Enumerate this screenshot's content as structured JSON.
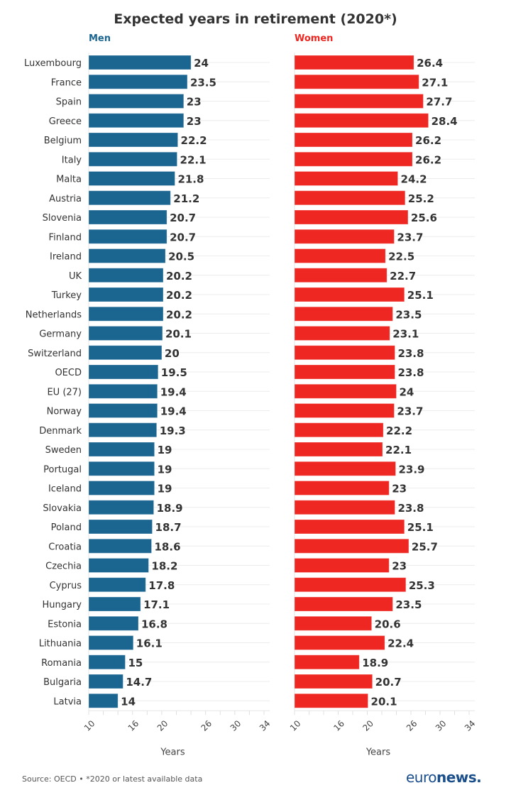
{
  "chart_data": {
    "type": "bar",
    "orientation": "horizontal",
    "title": "Expected years in retirement (2020*)",
    "categories": [
      "Luxembourg",
      "France",
      "Spain",
      "Greece",
      "Belgium",
      "Italy",
      "Malta",
      "Austria",
      "Slovenia",
      "Finland",
      "Ireland",
      "UK",
      "Turkey",
      "Netherlands",
      "Germany",
      "Switzerland",
      "OECD",
      "EU (27)",
      "Norway",
      "Denmark",
      "Sweden",
      "Portugal",
      "Iceland",
      "Slovakia",
      "Poland",
      "Croatia",
      "Czechia",
      "Cyprus",
      "Hungary",
      "Estonia",
      "Lithuania",
      "Romania",
      "Bulgaria",
      "Latvia"
    ],
    "series": [
      {
        "name": "Men",
        "color": "#1b6591",
        "values": [
          24,
          23.5,
          23,
          23,
          22.2,
          22.1,
          21.8,
          21.2,
          20.7,
          20.7,
          20.5,
          20.2,
          20.2,
          20.2,
          20.1,
          20,
          19.5,
          19.4,
          19.4,
          19.3,
          19,
          19,
          19,
          18.9,
          18.7,
          18.6,
          18.2,
          17.8,
          17.1,
          16.8,
          16.1,
          15,
          14.7,
          14
        ]
      },
      {
        "name": "Women",
        "color": "#ee2722",
        "values": [
          26.4,
          27.1,
          27.7,
          28.4,
          26.2,
          26.2,
          24.2,
          25.2,
          25.6,
          23.7,
          22.5,
          22.7,
          25.1,
          23.5,
          23.1,
          23.8,
          23.8,
          24,
          23.7,
          22.2,
          22.1,
          23.9,
          23,
          23.8,
          25.1,
          25.7,
          23,
          25.3,
          23.5,
          20.6,
          22.4,
          18.9,
          20.7,
          20.1
        ]
      }
    ],
    "xlabel": "Years",
    "xlim": [
      10,
      34
    ],
    "xticks": [
      "10",
      "16",
      "20",
      "26",
      "30",
      "34"
    ],
    "minor_tick_step": 2,
    "grid": "horizontal row lines",
    "legend": "panel titles above each panel"
  },
  "footer": {
    "source": "Source: OECD • *2020 or latest available data",
    "logo": "euronews."
  }
}
